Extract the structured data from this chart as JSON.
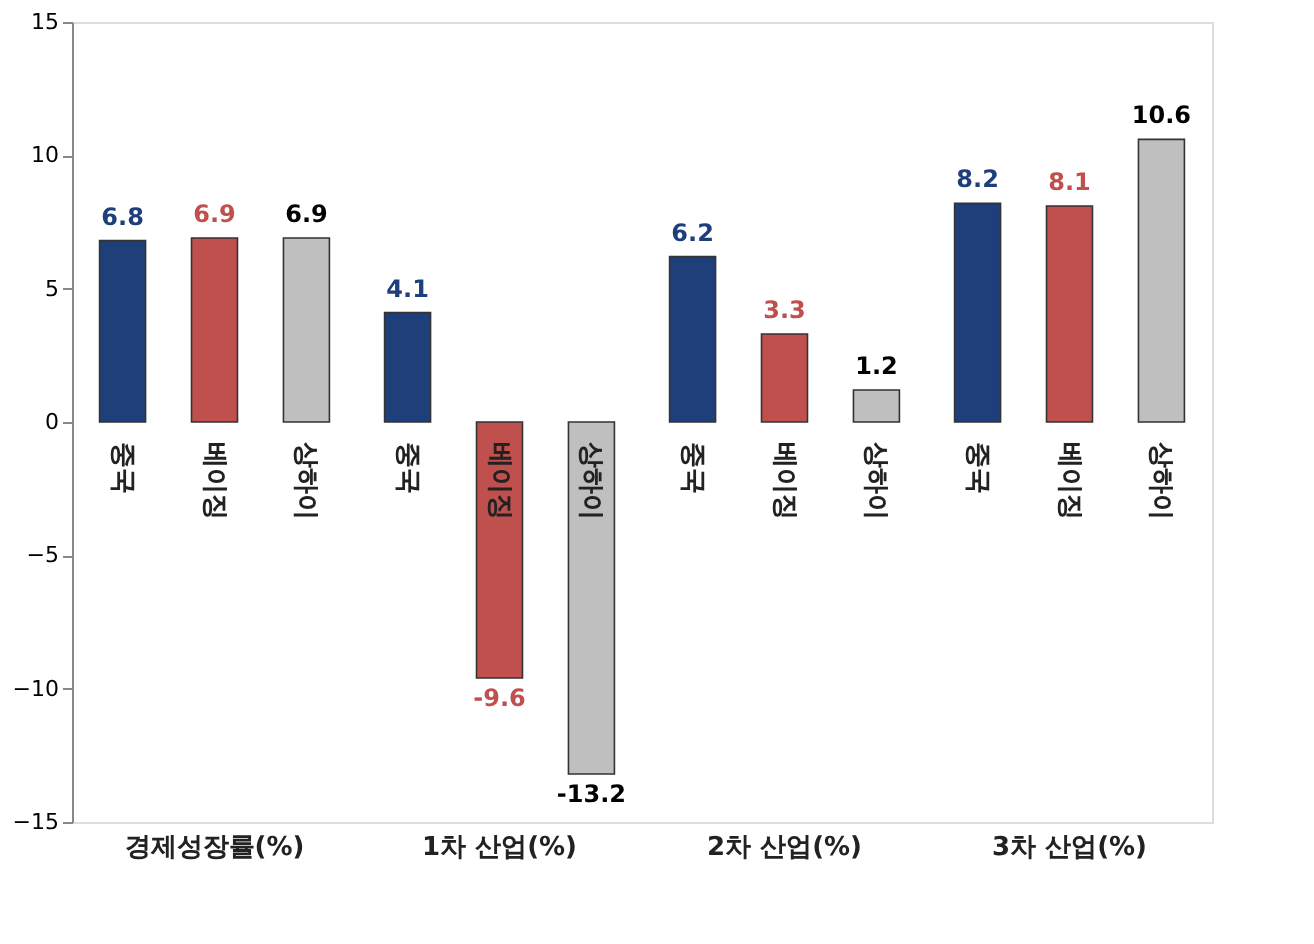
{
  "chart_data": {
    "type": "bar",
    "categories": [
      "경제성장률(%)",
      "1차 산업(%)",
      "2차 산업(%)",
      "3차 산업(%)"
    ],
    "series": [
      {
        "name": "중국",
        "color": "#1f3f7a",
        "values": [
          6.8,
          4.1,
          6.2,
          8.2
        ]
      },
      {
        "name": "베이징",
        "color": "#c0504d",
        "values": [
          6.9,
          -9.6,
          3.3,
          8.1
        ]
      },
      {
        "name": "상하이",
        "color": "#bfbfbf",
        "values": [
          6.9,
          -13.2,
          1.2,
          10.6
        ]
      }
    ],
    "ylim": [
      -15,
      15
    ],
    "yticks": [
      -15,
      -10,
      -5,
      0,
      5,
      10,
      15
    ],
    "data_labels": true,
    "grid": false
  }
}
